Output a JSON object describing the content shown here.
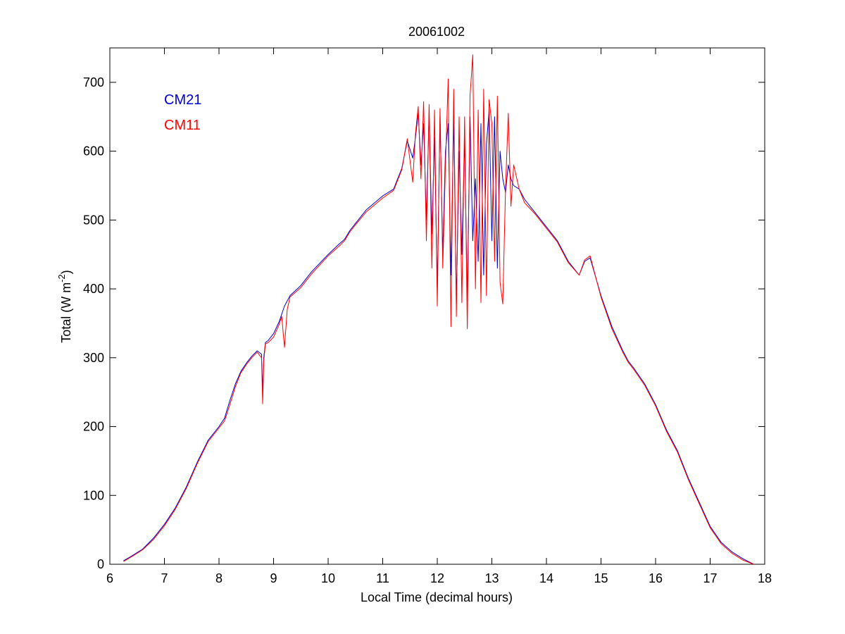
{
  "chart_data": {
    "type": "line",
    "title": "20061002",
    "xlabel": "Local Time (decimal hours)",
    "ylabel_main": "Total (W m",
    "ylabel_sup": "-2",
    "ylabel_close": ")",
    "xlim": [
      6,
      18
    ],
    "ylim": [
      0,
      750
    ],
    "xticks": [
      6,
      7,
      8,
      9,
      10,
      11,
      12,
      13,
      14,
      15,
      16,
      17,
      18
    ],
    "yticks": [
      0,
      100,
      200,
      300,
      400,
      500,
      600,
      700
    ],
    "grid": false,
    "legend_position": "top-left",
    "series": [
      {
        "name": "CM21",
        "color": "#0000cc",
        "x": [
          6.25,
          6.4,
          6.6,
          6.8,
          7.0,
          7.2,
          7.4,
          7.6,
          7.8,
          8.0,
          8.1,
          8.2,
          8.3,
          8.4,
          8.5,
          8.6,
          8.7,
          8.78,
          8.8,
          8.82,
          8.85,
          8.9,
          9.0,
          9.1,
          9.2,
          9.3,
          9.5,
          9.7,
          10.0,
          10.2,
          10.3,
          10.4,
          10.5,
          10.7,
          11.0,
          11.2,
          11.35,
          11.45,
          11.55,
          11.6,
          11.65,
          11.7,
          11.75,
          11.8,
          11.85,
          11.9,
          11.95,
          12.0,
          12.05,
          12.1,
          12.15,
          12.2,
          12.25,
          12.3,
          12.35,
          12.4,
          12.45,
          12.5,
          12.55,
          12.6,
          12.65,
          12.7,
          12.75,
          12.8,
          12.85,
          12.9,
          12.95,
          13.0,
          13.05,
          13.1,
          13.15,
          13.2,
          13.25,
          13.3,
          13.35,
          13.4,
          13.5,
          13.6,
          13.8,
          14.0,
          14.2,
          14.4,
          14.6,
          14.7,
          14.8,
          15.0,
          15.2,
          15.4,
          15.5,
          15.6,
          15.8,
          16.0,
          16.2,
          16.4,
          16.6,
          16.8,
          17.0,
          17.2,
          17.4,
          17.6,
          17.8
        ],
        "values": [
          5,
          12,
          22,
          38,
          58,
          82,
          112,
          148,
          180,
          200,
          212,
          238,
          262,
          280,
          292,
          302,
          310,
          305,
          250,
          300,
          322,
          325,
          335,
          352,
          375,
          390,
          405,
          425,
          450,
          465,
          472,
          485,
          495,
          515,
          535,
          545,
          575,
          615,
          590,
          620,
          655,
          580,
          640,
          500,
          655,
          480,
          620,
          400,
          650,
          450,
          600,
          640,
          420,
          650,
          380,
          600,
          450,
          620,
          380,
          650,
          470,
          560,
          440,
          640,
          420,
          610,
          660,
          470,
          650,
          430,
          600,
          560,
          540,
          580,
          560,
          550,
          545,
          530,
          510,
          490,
          470,
          440,
          420,
          440,
          445,
          390,
          345,
          310,
          295,
          285,
          262,
          232,
          195,
          165,
          125,
          90,
          55,
          32,
          18,
          8,
          0
        ]
      },
      {
        "name": "CM11",
        "color": "#ff0000",
        "x": [
          6.25,
          6.4,
          6.6,
          6.8,
          7.0,
          7.2,
          7.4,
          7.6,
          7.8,
          8.0,
          8.1,
          8.2,
          8.3,
          8.4,
          8.5,
          8.6,
          8.7,
          8.78,
          8.8,
          8.82,
          8.85,
          8.9,
          9.0,
          9.1,
          9.15,
          9.2,
          9.25,
          9.3,
          9.5,
          9.7,
          10.0,
          10.2,
          10.3,
          10.4,
          10.5,
          10.7,
          11.0,
          11.2,
          11.35,
          11.45,
          11.55,
          11.6,
          11.65,
          11.7,
          11.75,
          11.8,
          11.85,
          11.9,
          11.95,
          12.0,
          12.05,
          12.1,
          12.15,
          12.2,
          12.25,
          12.3,
          12.35,
          12.4,
          12.45,
          12.5,
          12.55,
          12.6,
          12.65,
          12.7,
          12.75,
          12.8,
          12.85,
          12.9,
          12.95,
          13.0,
          13.05,
          13.1,
          13.15,
          13.2,
          13.25,
          13.3,
          13.35,
          13.4,
          13.5,
          13.6,
          13.8,
          14.0,
          14.2,
          14.4,
          14.6,
          14.7,
          14.8,
          15.0,
          15.2,
          15.4,
          15.5,
          15.6,
          15.8,
          16.0,
          16.2,
          16.4,
          16.6,
          16.8,
          17.0,
          17.2,
          17.4,
          17.6,
          17.8
        ],
        "values": [
          4,
          11,
          21,
          36,
          56,
          80,
          110,
          146,
          178,
          198,
          208,
          232,
          258,
          278,
          290,
          300,
          308,
          300,
          233,
          295,
          320,
          322,
          330,
          348,
          360,
          315,
          370,
          388,
          402,
          422,
          448,
          462,
          470,
          483,
          493,
          512,
          532,
          543,
          573,
          618,
          555,
          625,
          665,
          560,
          672,
          470,
          668,
          430,
          660,
          375,
          662,
          430,
          580,
          705,
          345,
          690,
          360,
          650,
          380,
          650,
          342,
          680,
          740,
          400,
          660,
          380,
          690,
          390,
          675,
          640,
          440,
          680,
          410,
          378,
          545,
          655,
          520,
          580,
          545,
          525,
          508,
          488,
          468,
          438,
          420,
          442,
          448,
          388,
          342,
          308,
          293,
          283,
          260,
          230,
          193,
          163,
          123,
          88,
          53,
          30,
          16,
          6,
          0
        ]
      }
    ]
  }
}
